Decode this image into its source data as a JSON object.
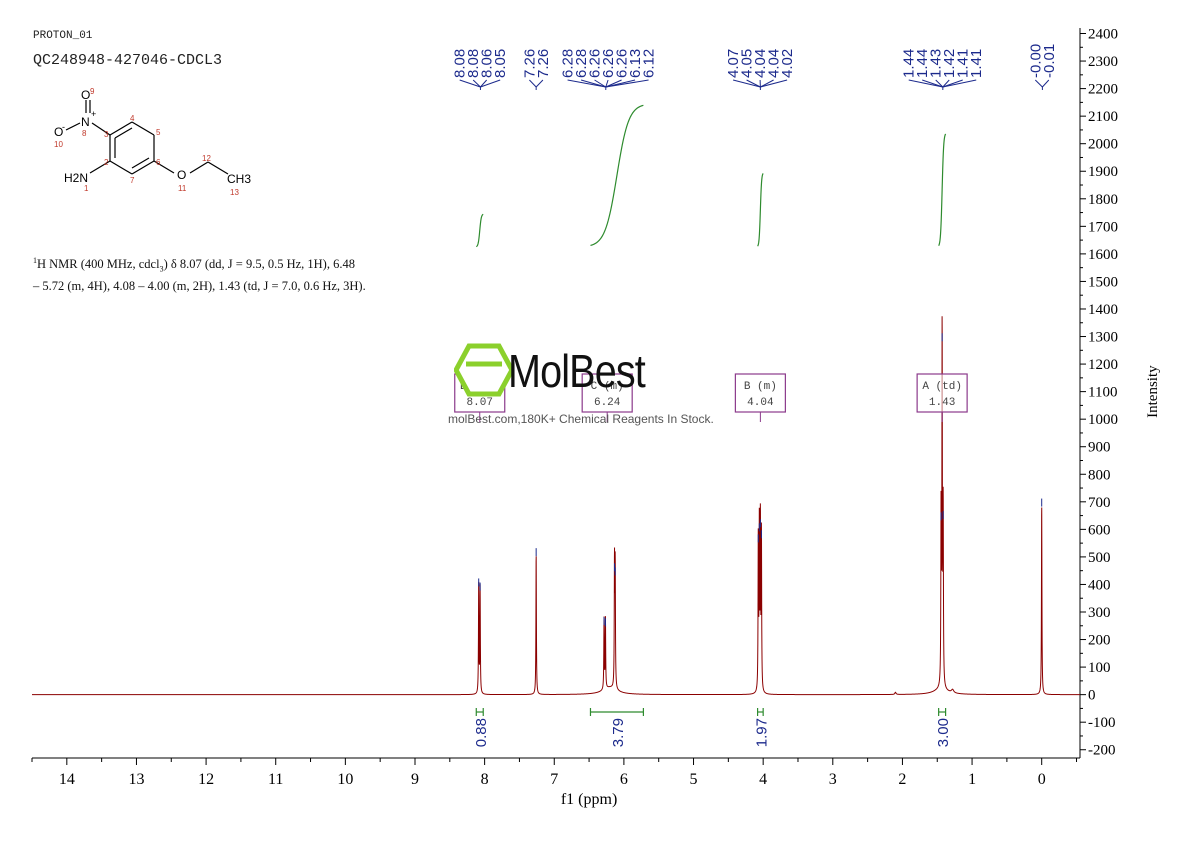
{
  "header": {
    "experiment": "PROTON_01",
    "sample": "QC248948-427046-CDCL3"
  },
  "molecule": {
    "atoms": [
      "O",
      "N",
      "+",
      "O",
      "-",
      "H2N",
      "O",
      "CH3"
    ],
    "numbers": [
      "1",
      "2",
      "3",
      "4",
      "5",
      "6",
      "7",
      "8",
      "9",
      "10",
      "11",
      "12",
      "13"
    ]
  },
  "nmr_text": {
    "line1": "H NMR (400 MHz, cdcl",
    "sup": "1",
    "sub": "3",
    "rest1": ") δ 8.07 (dd, J = 9.5, 0.5 Hz, 1H), 6.48",
    "line2": "– 5.72 (m, 4H), 4.08 – 4.00 (m, 2H), 1.43 (td, J = 7.0, 0.6 Hz, 3H)."
  },
  "watermark": {
    "brand": "MolBest",
    "tagline": "molBest.com,180K+ Chemical Reagents In Stock."
  },
  "colors": {
    "spectrum": "#8b0000",
    "integral": "#2e8b2e",
    "peak_label": "#1c2a8c",
    "multiplet_box": "#8b3a8b",
    "axis": "#000000"
  },
  "chart_data": {
    "type": "line",
    "xlabel": "f1 (ppm)",
    "ylabel": "Intensity",
    "xlim": [
      14.5,
      -0.55
    ],
    "ylim": [
      -230,
      2420
    ],
    "x_ticks": [
      14,
      13,
      12,
      11,
      10,
      9,
      8,
      7,
      6,
      5,
      4,
      3,
      2,
      1,
      0
    ],
    "y_ticks": [
      2400,
      2300,
      2200,
      2100,
      2000,
      1900,
      1800,
      1700,
      1600,
      1500,
      1400,
      1300,
      1200,
      1100,
      1000,
      900,
      800,
      700,
      600,
      500,
      400,
      300,
      200,
      100,
      0,
      -100,
      -200
    ],
    "peaks": [
      {
        "ppm": 8.085,
        "height": 400
      },
      {
        "ppm": 8.065,
        "height": 385
      },
      {
        "ppm": 7.26,
        "height": 510
      },
      {
        "ppm": 6.285,
        "height": 260
      },
      {
        "ppm": 6.265,
        "height": 255
      },
      {
        "ppm": 6.135,
        "height": 455
      },
      {
        "ppm": 6.125,
        "height": 440
      },
      {
        "ppm": 4.07,
        "height": 560
      },
      {
        "ppm": 4.055,
        "height": 600
      },
      {
        "ppm": 4.04,
        "height": 615
      },
      {
        "ppm": 4.025,
        "height": 575
      },
      {
        "ppm": 1.445,
        "height": 640
      },
      {
        "ppm": 1.43,
        "height": 1290
      },
      {
        "ppm": 1.415,
        "height": 645
      },
      {
        "ppm": 0.0,
        "height": 690
      }
    ],
    "peak_labels": [
      {
        "group": [
          8.08,
          8.08,
          8.06,
          8.05
        ],
        "labels": [
          "8.08",
          "8.08",
          "8.06",
          "8.05"
        ]
      },
      {
        "group": [
          7.26,
          7.26
        ],
        "labels": [
          "7.26",
          "7.26"
        ]
      },
      {
        "group": [
          6.28,
          6.28,
          6.26,
          6.26,
          6.26,
          6.13,
          6.12
        ],
        "labels": [
          "6.28",
          "6.28",
          "6.26",
          "6.26",
          "6.26",
          "6.13",
          "6.12"
        ]
      },
      {
        "group": [
          4.07,
          4.05,
          4.04,
          4.04,
          4.02
        ],
        "labels": [
          "4.07",
          "4.05",
          "4.04",
          "4.04",
          "4.02"
        ]
      },
      {
        "group": [
          1.44,
          1.44,
          1.43,
          1.42,
          1.41,
          1.41
        ],
        "labels": [
          "1.44",
          "1.44",
          "1.43",
          "1.42",
          "1.41",
          "1.41"
        ]
      },
      {
        "group": [
          0.0,
          -0.01
        ],
        "labels": [
          "-0.00",
          "-0.01"
        ]
      }
    ],
    "integrals": [
      {
        "from": 8.12,
        "to": 8.02,
        "value": "0.88"
      },
      {
        "from": 6.48,
        "to": 5.72,
        "value": "3.79"
      },
      {
        "from": 4.08,
        "to": 4.0,
        "value": "1.97"
      },
      {
        "from": 1.48,
        "to": 1.38,
        "value": "3.00"
      }
    ],
    "integral_curves": [
      {
        "from": 8.12,
        "to": 8.02,
        "start": 1625,
        "end": 1745
      },
      {
        "from": 6.48,
        "to": 5.72,
        "start": 1625,
        "end": 2145
      },
      {
        "from": 4.08,
        "to": 4.0,
        "start": 1625,
        "end": 1895
      },
      {
        "from": 1.48,
        "to": 1.38,
        "start": 1625,
        "end": 2040
      }
    ],
    "multiplets": [
      {
        "label": "A",
        "type": "td",
        "ppm": "1.43",
        "center": 1.43
      },
      {
        "label": "B",
        "type": "m",
        "ppm": "4.04",
        "center": 4.04
      },
      {
        "label": "C",
        "type": "m",
        "ppm": "6.24",
        "center": 6.24
      },
      {
        "label": "D",
        "type": "dd",
        "ppm": "8.07",
        "center": 8.07
      }
    ]
  }
}
